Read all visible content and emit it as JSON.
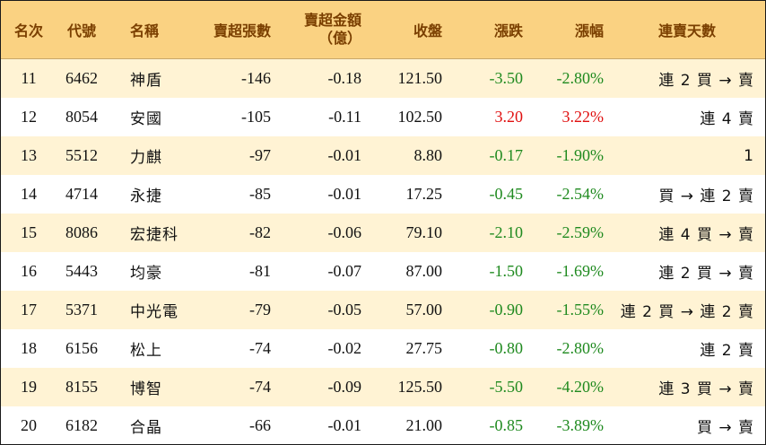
{
  "headers": {
    "rank": "名次",
    "code": "代號",
    "name": "名稱",
    "net_sell_lots": "賣超張數",
    "net_sell_amount_line1": "賣超金額",
    "net_sell_amount_line2": "（億）",
    "close": "收盤",
    "change": "漲跌",
    "change_pct": "漲幅",
    "streak": "連賣天數"
  },
  "colors": {
    "header_bg": "#fad282",
    "header_text": "#7a3f00",
    "alt_row_bg": "#fff3d4",
    "down": "#1f8a1f",
    "up": "#e01010"
  },
  "rows": [
    {
      "rank": "11",
      "code": "6462",
      "name": "神盾",
      "lots": "-146",
      "amount": "-0.18",
      "close": "121.50",
      "change": "-3.50",
      "pct": "-2.80%",
      "streak": "連 2 買 → 賣",
      "dir": "down"
    },
    {
      "rank": "12",
      "code": "8054",
      "name": "安國",
      "lots": "-105",
      "amount": "-0.11",
      "close": "102.50",
      "change": "3.20",
      "pct": "3.22%",
      "streak": "連 4 賣",
      "dir": "up"
    },
    {
      "rank": "13",
      "code": "5512",
      "name": "力麒",
      "lots": "-97",
      "amount": "-0.01",
      "close": "8.80",
      "change": "-0.17",
      "pct": "-1.90%",
      "streak": "1",
      "dir": "down"
    },
    {
      "rank": "14",
      "code": "4714",
      "name": "永捷",
      "lots": "-85",
      "amount": "-0.01",
      "close": "17.25",
      "change": "-0.45",
      "pct": "-2.54%",
      "streak": "買 → 連 2 賣",
      "dir": "down"
    },
    {
      "rank": "15",
      "code": "8086",
      "name": "宏捷科",
      "lots": "-82",
      "amount": "-0.06",
      "close": "79.10",
      "change": "-2.10",
      "pct": "-2.59%",
      "streak": "連 4 買 → 賣",
      "dir": "down"
    },
    {
      "rank": "16",
      "code": "5443",
      "name": "均豪",
      "lots": "-81",
      "amount": "-0.07",
      "close": "87.00",
      "change": "-1.50",
      "pct": "-1.69%",
      "streak": "連 2 買 → 賣",
      "dir": "down"
    },
    {
      "rank": "17",
      "code": "5371",
      "name": "中光電",
      "lots": "-79",
      "amount": "-0.05",
      "close": "57.00",
      "change": "-0.90",
      "pct": "-1.55%",
      "streak": "連 2 買 → 連 2 賣",
      "dir": "down"
    },
    {
      "rank": "18",
      "code": "6156",
      "name": "松上",
      "lots": "-74",
      "amount": "-0.02",
      "close": "27.75",
      "change": "-0.80",
      "pct": "-2.80%",
      "streak": "連 2 賣",
      "dir": "down"
    },
    {
      "rank": "19",
      "code": "8155",
      "name": "博智",
      "lots": "-74",
      "amount": "-0.09",
      "close": "125.50",
      "change": "-5.50",
      "pct": "-4.20%",
      "streak": "連 3 買 → 賣",
      "dir": "down"
    },
    {
      "rank": "20",
      "code": "6182",
      "name": "合晶",
      "lots": "-66",
      "amount": "-0.01",
      "close": "21.00",
      "change": "-0.85",
      "pct": "-3.89%",
      "streak": "買 → 賣",
      "dir": "down"
    }
  ]
}
